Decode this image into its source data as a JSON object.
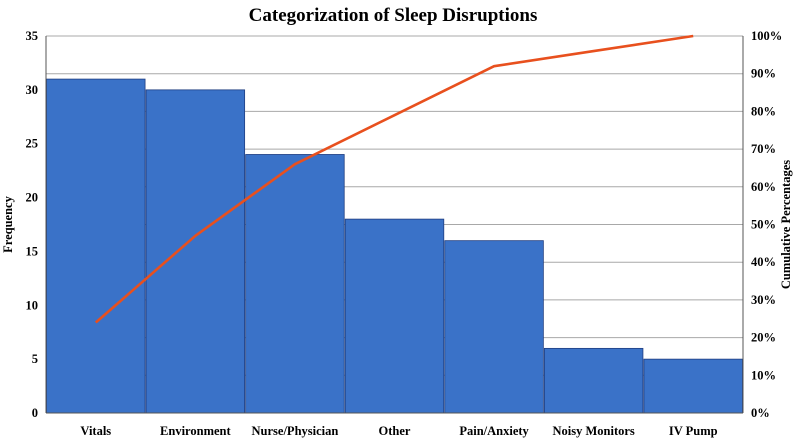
{
  "chart_data": {
    "type": "bar",
    "title": "Categorization of Sleep Disruptions",
    "xlabel": "",
    "ylabel": "Frequency",
    "y2label": "Cumulative Percentages",
    "categories": [
      "Vitals",
      "Environment",
      "Nurse/Physician",
      "Other",
      "Pain/Anxiety",
      "Noisy Monitors",
      "IV Pump"
    ],
    "series": [
      {
        "type": "bar",
        "axis": "left",
        "values": [
          31,
          30,
          24,
          18,
          16,
          6,
          5
        ],
        "color": "#3a72c8"
      },
      {
        "type": "line",
        "axis": "right",
        "values": [
          24,
          47,
          66,
          79,
          92,
          96,
          100
        ],
        "color": "#e8501e"
      }
    ],
    "ylim": [
      0,
      35
    ],
    "yticks": [
      "0",
      "5",
      "10",
      "15",
      "20",
      "25",
      "30",
      "35"
    ],
    "y2lim": [
      0,
      100
    ],
    "y2ticks": [
      "0%",
      "10%",
      "20%",
      "30%",
      "40%",
      "50%",
      "60%",
      "70%",
      "80%",
      "90%",
      "100%"
    ],
    "grid": true,
    "legend": "none"
  }
}
